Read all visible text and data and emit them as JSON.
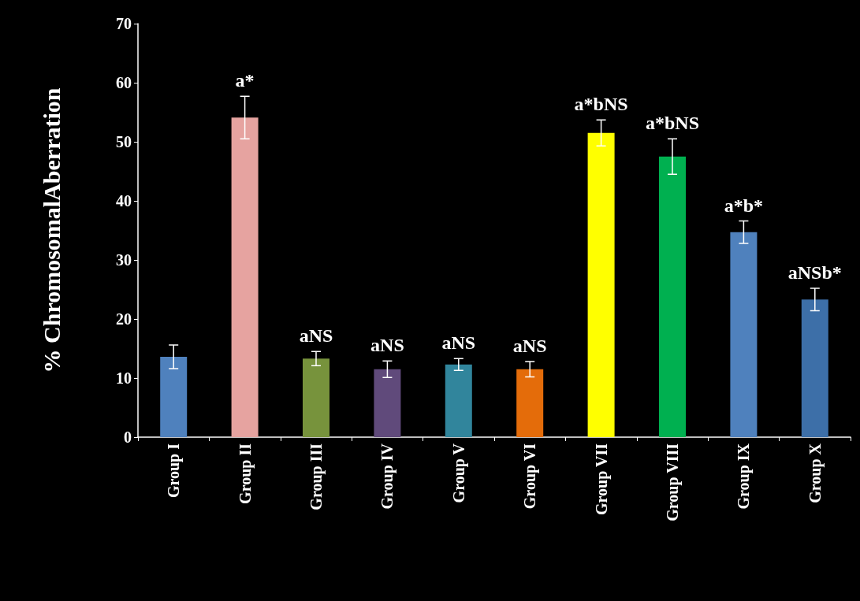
{
  "chart_data": {
    "type": "bar",
    "ylabel": "% ChromosomalAberration",
    "categories": [
      "Group I",
      "Group II",
      "Group III",
      "Group IV",
      "Group V",
      "Group VI",
      "Group VII",
      "Group VIII",
      "Group IX",
      "Group X"
    ],
    "values": [
      13.6,
      54.1,
      13.3,
      11.5,
      12.3,
      11.5,
      51.5,
      47.5,
      34.7,
      23.3
    ],
    "errors": [
      2.0,
      3.6,
      1.2,
      1.4,
      1.0,
      1.3,
      2.2,
      3.0,
      1.9,
      1.9
    ],
    "colors": [
      "#4f81bd",
      "#e6a3a0",
      "#77933c",
      "#604a7b",
      "#31859c",
      "#e46c0a",
      "#ffff00",
      "#00b050",
      "#4f81bd",
      "#3d6fa8"
    ],
    "ylim": [
      0,
      70
    ],
    "yticks": [
      0,
      10,
      20,
      30,
      40,
      50,
      60,
      70
    ],
    "grid": false,
    "annotations": [
      {
        "text": "a*",
        "x": "Group II",
        "y": 57.7
      },
      {
        "text": "aNS",
        "x": "Group III",
        "y": 14.5
      },
      {
        "text": "aNS",
        "x": "Group IV",
        "y": 12.9
      },
      {
        "text": "aNS",
        "x": "Group V",
        "y": 13.3
      },
      {
        "text": "aNS",
        "x": "Group VI",
        "y": 12.8
      },
      {
        "text": "a*bNS",
        "x": "Group VII",
        "y": 53.7
      },
      {
        "text": "a*bNS",
        "x": "Group VIII",
        "y": 50.5
      },
      {
        "text": "a*b*",
        "x": "Group IX",
        "y": 36.6
      },
      {
        "text": "aNSb*",
        "x": "Group X",
        "y": 25.2
      }
    ]
  }
}
